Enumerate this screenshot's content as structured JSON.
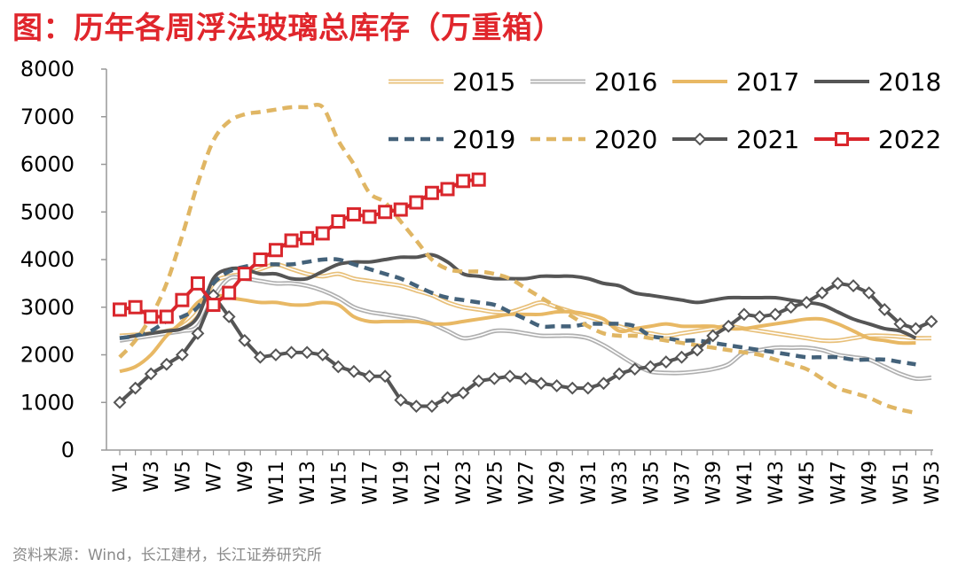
{
  "title": "图：历年各周浮法玻璃总库存（万重箱）",
  "source": "资料来源：Wind，长江建材，长江证券研究所",
  "chart_data": {
    "type": "line",
    "title": "图：历年各周浮法玻璃总库存（万重箱）",
    "xlabel": "",
    "ylabel": "",
    "ylim": [
      0,
      8000
    ],
    "yticks": [
      0,
      1000,
      2000,
      3000,
      4000,
      5000,
      6000,
      7000,
      8000
    ],
    "xticks": [
      "W1",
      "W3",
      "W5",
      "W7",
      "W9",
      "W11",
      "W13",
      "W15",
      "W17",
      "W19",
      "W21",
      "W23",
      "W25",
      "W27",
      "W29",
      "W31",
      "W33",
      "W35",
      "W37",
      "W39",
      "W41",
      "W43",
      "W45",
      "W47",
      "W49",
      "W51",
      "W53"
    ],
    "weeks": 53,
    "legend_position": "top-right",
    "series": [
      {
        "name": "2015",
        "color": "#e8c07a",
        "style": "double",
        "values": [
          2400,
          2420,
          2450,
          2500,
          2600,
          2900,
          3500,
          3650,
          3700,
          3800,
          3900,
          3800,
          3700,
          3650,
          3700,
          3600,
          3550,
          3500,
          3450,
          3350,
          3250,
          3100,
          3000,
          2950,
          2900,
          2900,
          3000,
          3100,
          3000,
          2900,
          2800,
          2700,
          2600,
          2500,
          2450,
          2400,
          2450,
          2500,
          2550,
          2600,
          2550,
          2500,
          2450,
          2400,
          2350,
          2300,
          2300,
          2350,
          2400,
          2400,
          2380,
          2350,
          2350
        ]
      },
      {
        "name": "2016",
        "color": "#b0b0b0",
        "style": "double",
        "values": [
          2300,
          2350,
          2400,
          2450,
          2500,
          2600,
          3200,
          3600,
          3600,
          3550,
          3500,
          3500,
          3450,
          3350,
          3200,
          3000,
          2900,
          2850,
          2800,
          2750,
          2650,
          2500,
          2350,
          2400,
          2500,
          2500,
          2450,
          2400,
          2400,
          2400,
          2350,
          2200,
          2000,
          1800,
          1650,
          1620,
          1620,
          1650,
          1700,
          1800,
          2050,
          2100,
          2150,
          2150,
          2150,
          2100,
          2000,
          1950,
          1900,
          1750,
          1600,
          1500,
          1520
        ]
      },
      {
        "name": "2017",
        "color": "#e8b864",
        "style": "solid",
        "values": [
          1650,
          1750,
          2000,
          2400,
          2700,
          3100,
          3250,
          3200,
          3150,
          3100,
          3100,
          3050,
          3050,
          3100,
          3050,
          2800,
          2700,
          2700,
          2700,
          2700,
          2650,
          2650,
          2700,
          2750,
          2800,
          2850,
          2850,
          2850,
          2900,
          2900,
          2850,
          2750,
          2500,
          2550,
          2600,
          2650,
          2600,
          2600,
          2600,
          2550,
          2550,
          2600,
          2650,
          2700,
          2750,
          2750,
          2650,
          2500,
          2350,
          2300,
          2250,
          2250,
          null
        ]
      },
      {
        "name": "2018",
        "color": "#555555",
        "style": "solid",
        "values": [
          2350,
          2400,
          2450,
          2500,
          2550,
          2800,
          3600,
          3800,
          3800,
          3700,
          3700,
          3600,
          3600,
          3750,
          3900,
          3950,
          3950,
          4000,
          4050,
          4050,
          4100,
          3950,
          3700,
          3650,
          3600,
          3600,
          3600,
          3650,
          3650,
          3650,
          3600,
          3500,
          3450,
          3300,
          3250,
          3200,
          3150,
          3100,
          3150,
          3200,
          3200,
          3200,
          3200,
          3150,
          3100,
          3050,
          2900,
          2750,
          2650,
          2550,
          2500,
          2350,
          null
        ]
      },
      {
        "name": "2019",
        "color": "#44627a",
        "style": "dash",
        "values": [
          2350,
          2400,
          2500,
          2700,
          2800,
          3000,
          3500,
          3750,
          3850,
          3900,
          3900,
          3900,
          3950,
          4000,
          4000,
          3900,
          3800,
          3700,
          3600,
          3450,
          3300,
          3200,
          3150,
          3100,
          3050,
          2900,
          2750,
          2600,
          2600,
          2600,
          2650,
          2650,
          2650,
          2600,
          2400,
          2350,
          2300,
          2300,
          2250,
          2200,
          2150,
          2100,
          2050,
          2000,
          1950,
          1950,
          1950,
          1900,
          1900,
          1900,
          1850,
          1800,
          null
        ]
      },
      {
        "name": "2020",
        "color": "#e0b664",
        "style": "dash",
        "values": [
          1950,
          2300,
          2800,
          3500,
          4500,
          5600,
          6500,
          6900,
          7050,
          7100,
          7150,
          7200,
          7200,
          7200,
          6500,
          6000,
          5400,
          5200,
          4800,
          4400,
          4000,
          3800,
          3750,
          3750,
          3700,
          3600,
          3400,
          3200,
          3000,
          2800,
          2600,
          2450,
          2400,
          2400,
          2350,
          2300,
          2250,
          2200,
          2150,
          2100,
          2050,
          2000,
          1900,
          1800,
          1700,
          1500,
          1300,
          1200,
          1100,
          950,
          850,
          780,
          null
        ]
      },
      {
        "name": "2021",
        "color": "#555555",
        "style": "marker-diamond",
        "values": [
          1000,
          1300,
          1600,
          1800,
          2000,
          2450,
          3250,
          2800,
          2300,
          1950,
          2000,
          2050,
          2050,
          2000,
          1750,
          1650,
          1550,
          1550,
          1050,
          920,
          920,
          1100,
          1200,
          1450,
          1500,
          1550,
          1500,
          1400,
          1350,
          1300,
          1300,
          1400,
          1600,
          1700,
          1750,
          1850,
          1950,
          2100,
          2400,
          2600,
          2850,
          2800,
          2850,
          3000,
          3100,
          3300,
          3500,
          3450,
          3300,
          2950,
          2650,
          2550,
          2700
        ]
      },
      {
        "name": "2022",
        "color": "#d9262c",
        "style": "marker-square",
        "values": [
          2950,
          3000,
          2800,
          2800,
          3150,
          3500,
          3050,
          3300,
          3700,
          4000,
          4200,
          4400,
          4450,
          4550,
          4800,
          4950,
          4900,
          5000,
          5050,
          5200,
          5400,
          5480,
          5650,
          5680,
          null,
          null,
          null,
          null,
          null,
          null,
          null,
          null,
          null,
          null,
          null,
          null,
          null,
          null,
          null,
          null,
          null,
          null,
          null,
          null,
          null,
          null,
          null,
          null,
          null,
          null,
          null,
          null,
          null
        ]
      }
    ]
  }
}
